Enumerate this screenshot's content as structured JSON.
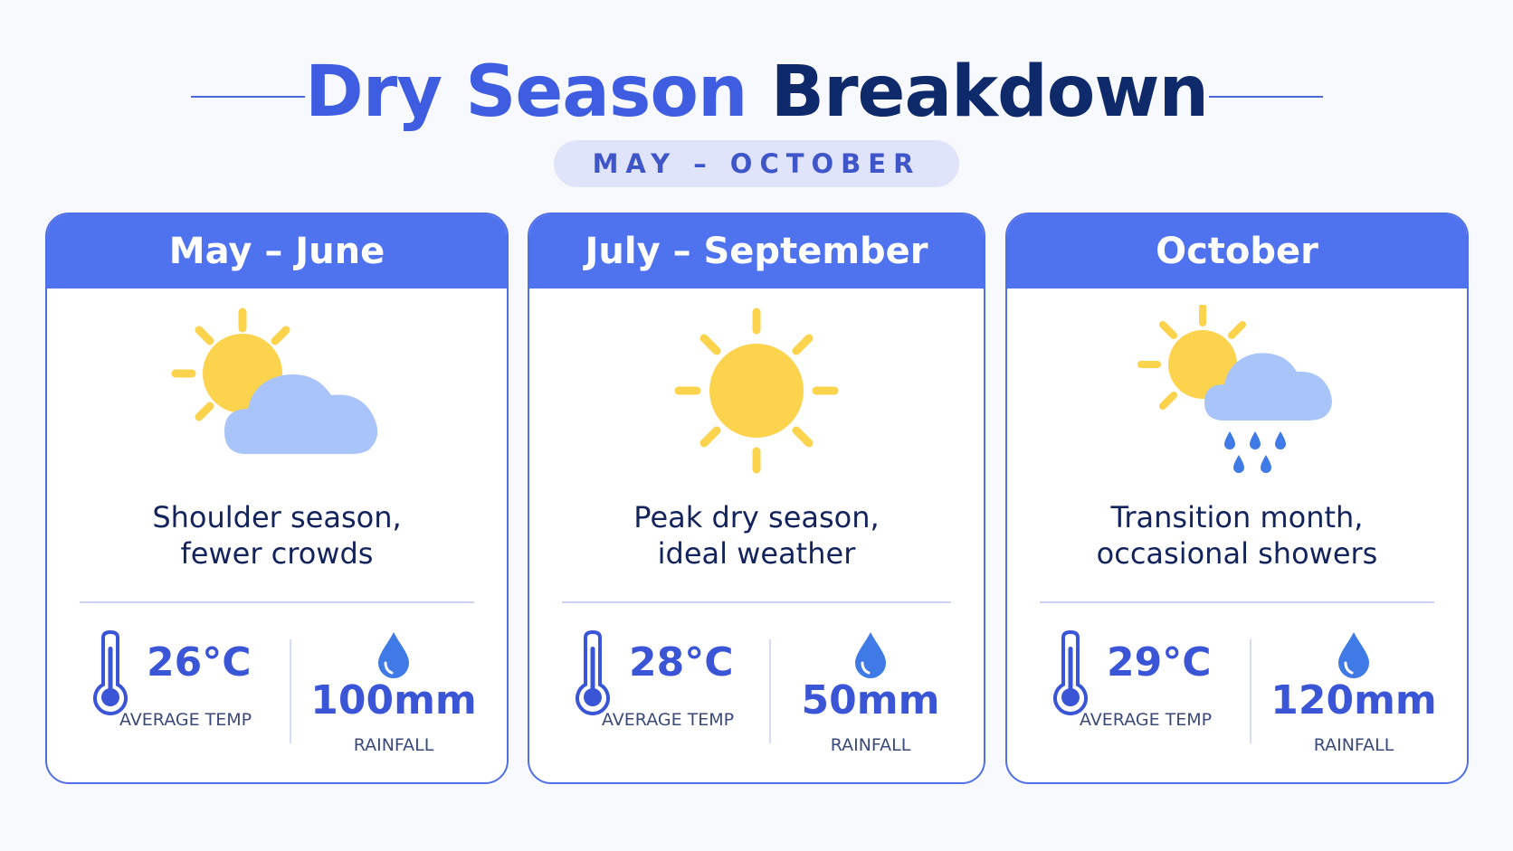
{
  "header": {
    "title_part1": "Dry Season",
    "title_part2": "Breakdown",
    "subtitle": "MAY – OCTOBER"
  },
  "colors": {
    "accent": "#4f72ee",
    "title_dark": "#0f2a6b",
    "sun": "#fcd34d",
    "cloud": "#a9c4f8",
    "rain": "#3f7ae6"
  },
  "cards": [
    {
      "period": "May – June",
      "icon": "sun-behind-cloud-icon",
      "desc_line1": "Shoulder season,",
      "desc_line2": "fewer crowds",
      "temp": "26°C",
      "temp_label": "AVERAGE TEMP",
      "rainfall": "100mm",
      "rainfall_label": "RAINFALL"
    },
    {
      "period": "July – September",
      "icon": "sun-icon",
      "desc_line1": "Peak dry season,",
      "desc_line2": "ideal weather",
      "temp": "28°C",
      "temp_label": "AVERAGE TEMP",
      "rainfall": "50mm",
      "rainfall_label": "RAINFALL"
    },
    {
      "period": "October",
      "icon": "sun-cloud-rain-icon",
      "desc_line1": "Transition month,",
      "desc_line2": "occasional showers",
      "temp": "29°C",
      "temp_label": "AVERAGE TEMP",
      "rainfall": "120mm",
      "rainfall_label": "RAINFALL"
    }
  ]
}
